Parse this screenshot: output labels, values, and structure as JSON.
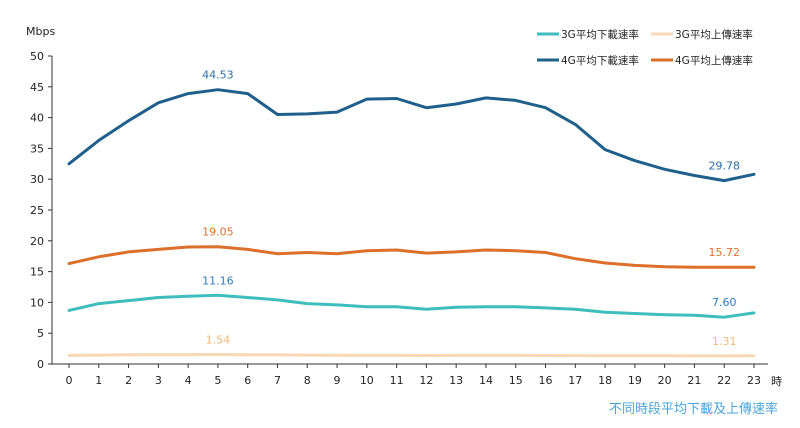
{
  "chart_data": {
    "type": "line",
    "title": "",
    "caption": "不同時段平均下載及上傳速率",
    "ylabel": "Mbps",
    "xlabel": "時",
    "ylim": [
      0,
      50
    ],
    "yticks": [
      0,
      5,
      10,
      15,
      20,
      25,
      30,
      35,
      40,
      45,
      50
    ],
    "grid": false,
    "legend_position": "top-right",
    "x": [
      0,
      1,
      2,
      3,
      4,
      5,
      6,
      7,
      8,
      9,
      10,
      11,
      12,
      13,
      14,
      15,
      16,
      17,
      18,
      19,
      20,
      21,
      22,
      23
    ],
    "series": [
      {
        "name": "3G平均下載速率",
        "color": "#3dbdbd",
        "values": [
          8.7,
          9.8,
          10.3,
          10.8,
          11.0,
          11.16,
          10.8,
          10.4,
          9.8,
          9.6,
          9.3,
          9.3,
          8.9,
          9.2,
          9.3,
          9.3,
          9.1,
          8.9,
          8.4,
          8.2,
          8.0,
          7.9,
          7.6,
          8.3
        ],
        "labels": [
          {
            "x": 5,
            "text": "11.16"
          },
          {
            "x": 22,
            "text": "7.60"
          }
        ],
        "label_color": "#2b7cc0"
      },
      {
        "name": "3G平均上傳速率",
        "color": "#f7d7b5",
        "values": [
          1.4,
          1.45,
          1.5,
          1.52,
          1.53,
          1.54,
          1.5,
          1.48,
          1.45,
          1.43,
          1.4,
          1.4,
          1.38,
          1.39,
          1.4,
          1.4,
          1.38,
          1.37,
          1.35,
          1.34,
          1.33,
          1.32,
          1.31,
          1.33
        ],
        "labels": [
          {
            "x": 5,
            "text": "1.54"
          },
          {
            "x": 22,
            "text": "1.31"
          }
        ],
        "label_color": "#f0b878"
      },
      {
        "name": "4G平均下載速率",
        "color": "#1f5f8b",
        "values": [
          32.5,
          36.3,
          39.5,
          42.4,
          43.9,
          44.53,
          43.9,
          40.5,
          40.6,
          40.9,
          43.0,
          43.1,
          41.6,
          42.2,
          43.2,
          42.8,
          41.6,
          38.9,
          34.8,
          33.0,
          31.6,
          30.6,
          29.78,
          30.8
        ],
        "labels": [
          {
            "x": 5,
            "text": "44.53"
          },
          {
            "x": 22,
            "text": "29.78"
          }
        ],
        "label_color": "#2b6fa8"
      },
      {
        "name": "4G平均上傳速率",
        "color": "#dc6f2a",
        "values": [
          16.3,
          17.4,
          18.2,
          18.6,
          19.0,
          19.05,
          18.6,
          17.9,
          18.1,
          17.9,
          18.4,
          18.5,
          18.0,
          18.2,
          18.5,
          18.4,
          18.1,
          17.1,
          16.4,
          16.0,
          15.8,
          15.7,
          15.72,
          15.7
        ],
        "labels": [
          {
            "x": 5,
            "text": "19.05"
          },
          {
            "x": 22,
            "text": "15.72"
          }
        ],
        "label_color": "#dc6f2a"
      }
    ],
    "legend_order": [
      0,
      1,
      2,
      3
    ]
  }
}
